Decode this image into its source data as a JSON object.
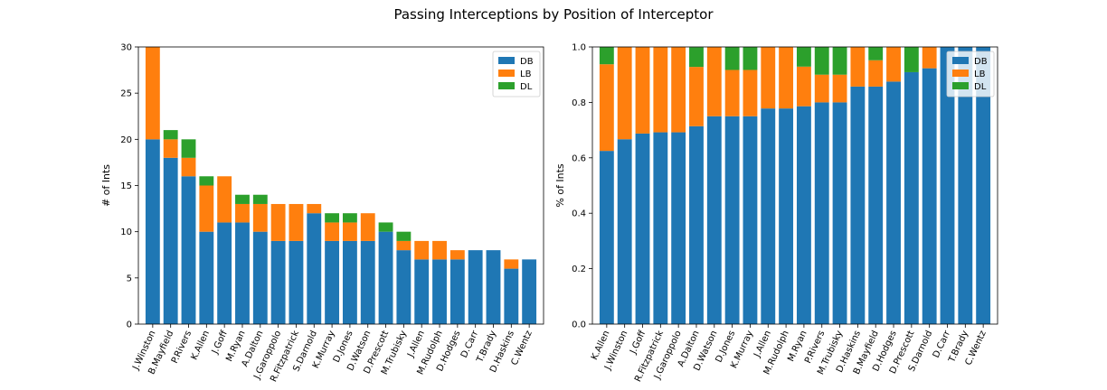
{
  "figure": {
    "title": "Passing Interceptions by Position of Interceptor"
  },
  "colors": {
    "DB": "#1f77b4",
    "LB": "#ff7f0e",
    "DL": "#2ca02c"
  },
  "chart_data": [
    {
      "type": "bar",
      "stacked": true,
      "title": "",
      "xlabel": "",
      "ylabel": "# of Ints",
      "ylim": [
        0,
        30
      ],
      "yticks": [
        0,
        5,
        10,
        15,
        20,
        25,
        30
      ],
      "legend_position": "top-right",
      "categories": [
        "J.Winston",
        "B.Mayfield",
        "P.Rivers",
        "K.Allen",
        "J.Goff",
        "M.Ryan",
        "A.Dalton",
        "J.Garoppolo",
        "R.Fitzpatrick",
        "S.Darnold",
        "K.Murray",
        "D.Jones",
        "D.Watson",
        "D.Prescott",
        "M.Trubisky",
        "J.Allen",
        "M.Rudolph",
        "D.Hodges",
        "D.Carr",
        "T.Brady",
        "D.Haskins",
        "C.Wentz"
      ],
      "series": [
        {
          "name": "DB",
          "values": [
            20,
            18,
            16,
            10,
            11,
            11,
            10,
            9,
            9,
            12,
            9,
            9,
            9,
            10,
            8,
            7,
            7,
            7,
            8,
            8,
            6,
            7
          ]
        },
        {
          "name": "LB",
          "values": [
            10,
            2,
            2,
            5,
            5,
            2,
            3,
            4,
            4,
            1,
            2,
            2,
            3,
            0,
            1,
            2,
            2,
            1,
            0,
            0,
            1,
            0
          ]
        },
        {
          "name": "DL",
          "values": [
            0,
            1,
            2,
            1,
            0,
            1,
            1,
            0,
            0,
            0,
            1,
            1,
            0,
            1,
            1,
            0,
            0,
            0,
            0,
            0,
            0,
            0
          ]
        }
      ]
    },
    {
      "type": "bar",
      "stacked": true,
      "title": "",
      "xlabel": "",
      "ylabel": "% of Ints",
      "ylim": [
        0,
        1
      ],
      "yticks": [
        "0.0",
        "0.2",
        "0.4",
        "0.6",
        "0.8",
        "1.0"
      ],
      "legend_position": "top-right",
      "categories": [
        "K.Allen",
        "J.Winston",
        "J.Goff",
        "R.Fitzpatrick",
        "J.Garoppolo",
        "A.Dalton",
        "D.Watson",
        "D.Jones",
        "K.Murray",
        "J.Allen",
        "M.Rudolph",
        "M.Ryan",
        "P.Rivers",
        "M.Trubisky",
        "D.Haskins",
        "B.Mayfield",
        "D.Hodges",
        "D.Prescott",
        "S.Darnold",
        "D.Carr",
        "T.Brady",
        "C.Wentz"
      ],
      "series": [
        {
          "name": "DB",
          "values": [
            0.625,
            0.667,
            0.6875,
            0.692,
            0.692,
            0.714,
            0.75,
            0.75,
            0.75,
            0.778,
            0.778,
            0.786,
            0.8,
            0.8,
            0.857,
            0.857,
            0.875,
            0.909,
            0.923,
            1.0,
            1.0,
            1.0
          ]
        },
        {
          "name": "LB",
          "values": [
            0.3125,
            0.333,
            0.3125,
            0.308,
            0.308,
            0.214,
            0.25,
            0.167,
            0.167,
            0.222,
            0.222,
            0.143,
            0.1,
            0.1,
            0.143,
            0.095,
            0.125,
            0.0,
            0.077,
            0.0,
            0.0,
            0.0
          ]
        },
        {
          "name": "DL",
          "values": [
            0.0625,
            0.0,
            0.0,
            0.0,
            0.0,
            0.071,
            0.0,
            0.083,
            0.083,
            0.0,
            0.0,
            0.071,
            0.1,
            0.1,
            0.0,
            0.048,
            0.0,
            0.091,
            0.0,
            0.0,
            0.0,
            0.0
          ]
        }
      ]
    }
  ]
}
